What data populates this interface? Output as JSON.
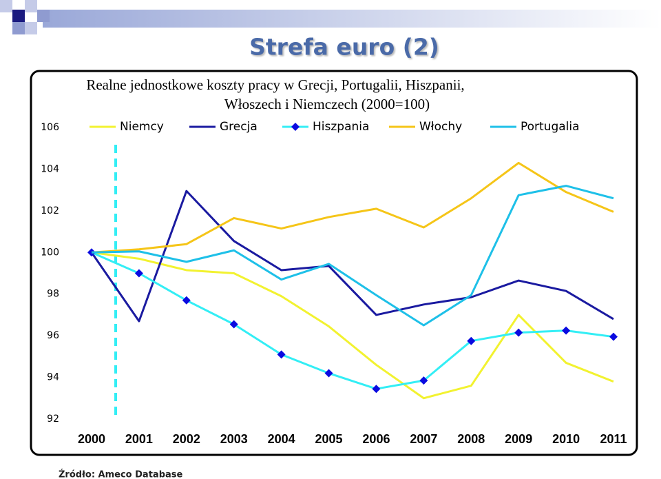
{
  "slide_title": "Strefa euro (2)",
  "source": "Źródło: Ameco Database",
  "chart_data": {
    "type": "line",
    "title": [
      "Realne jednostkowe koszty pracy w Grecji, Portugalii, Hiszpanii,",
      "Włoszech i Niemczech (2000=100)"
    ],
    "categories": [
      "2000",
      "2001",
      "2002",
      "2003",
      "2004",
      "2005",
      "2006",
      "2007",
      "2008",
      "2009",
      "2010",
      "2011"
    ],
    "ylim": [
      92,
      106
    ],
    "yticks": [
      92,
      94,
      96,
      98,
      100,
      102,
      104,
      106
    ],
    "series": [
      {
        "name": "Niemcy",
        "color": "#f2f230",
        "values": [
          100,
          99.7,
          99.15,
          99.0,
          97.9,
          96.45,
          94.6,
          93.0,
          93.6,
          97.0,
          94.7,
          93.8
        ]
      },
      {
        "name": "Grecja",
        "color": "#1a1aa0",
        "values": [
          100,
          96.7,
          102.95,
          100.55,
          99.15,
          99.35,
          97.0,
          97.5,
          97.85,
          98.65,
          98.15,
          96.8
        ]
      },
      {
        "name": "Hiszpania",
        "color": "#33eef5",
        "marker": "diamond",
        "marker_color": "#0a0ae0",
        "values": [
          100,
          99.0,
          97.7,
          96.55,
          95.1,
          94.2,
          93.45,
          93.85,
          95.75,
          96.15,
          96.25,
          95.95
        ]
      },
      {
        "name": "Włochy",
        "color": "#f5c518",
        "values": [
          100,
          100.15,
          100.4,
          101.65,
          101.15,
          101.7,
          102.1,
          101.2,
          102.6,
          104.3,
          102.9,
          101.95
        ]
      },
      {
        "name": "Portugalia",
        "color": "#1ec0e8",
        "values": [
          100,
          100.05,
          99.55,
          100.1,
          98.7,
          99.45,
          97.95,
          96.5,
          97.95,
          102.75,
          103.2,
          102.6
        ]
      }
    ]
  }
}
